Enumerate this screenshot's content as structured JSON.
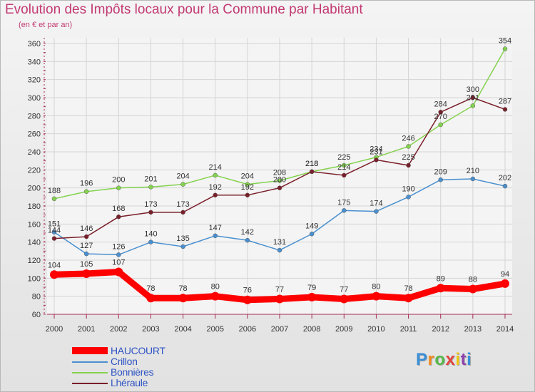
{
  "header": {
    "title": "Evolution des Impôts locaux pour la Commune par Habitant",
    "subtitle": "(en € et par an)"
  },
  "logo": {
    "text": "Proxiti",
    "colors": [
      "#3b8fd6",
      "#f08a1d",
      "#55b848",
      "#e2433a",
      "#f1c40f",
      "#8e44ad",
      "#3b8fd6"
    ]
  },
  "colors": {
    "title": "#c23a72",
    "axis": "#a52a50",
    "grid": "#d4d4d4",
    "legend_text": "#2f55c4"
  },
  "chart_data": {
    "type": "line",
    "x": [
      2000,
      2001,
      2002,
      2003,
      2004,
      2005,
      2006,
      2007,
      2008,
      2009,
      2010,
      2011,
      2012,
      2013,
      2014
    ],
    "ylim": [
      60,
      360
    ],
    "yticks": [
      60,
      80,
      100,
      120,
      140,
      160,
      180,
      200,
      220,
      240,
      260,
      280,
      300,
      320,
      340,
      360
    ],
    "grid": true,
    "legend_position": "bottom-left",
    "series": [
      {
        "name": "HAUCOURT",
        "color": "#ff0000",
        "style": "thick",
        "values": [
          104,
          105,
          107,
          78,
          78,
          80,
          76,
          77,
          79,
          77,
          80,
          78,
          89,
          88,
          94
        ]
      },
      {
        "name": "Crillon",
        "color": "#4a90d0",
        "style": "thin",
        "values": [
          151,
          127,
          126,
          140,
          135,
          147,
          142,
          131,
          149,
          175,
          174,
          190,
          209,
          210,
          202
        ]
      },
      {
        "name": "Bonnières",
        "color": "#84d24e",
        "style": "thin",
        "values": [
          188,
          196,
          200,
          201,
          204,
          214,
          204,
          208,
          218,
          225,
          234,
          246,
          270,
          291,
          354
        ]
      },
      {
        "name": "Lhéraule",
        "color": "#7a1f2a",
        "style": "thin",
        "values": [
          144,
          146,
          168,
          173,
          173,
          192,
          192,
          200,
          218,
          214,
          231,
          225,
          284,
          300,
          287
        ]
      }
    ]
  }
}
